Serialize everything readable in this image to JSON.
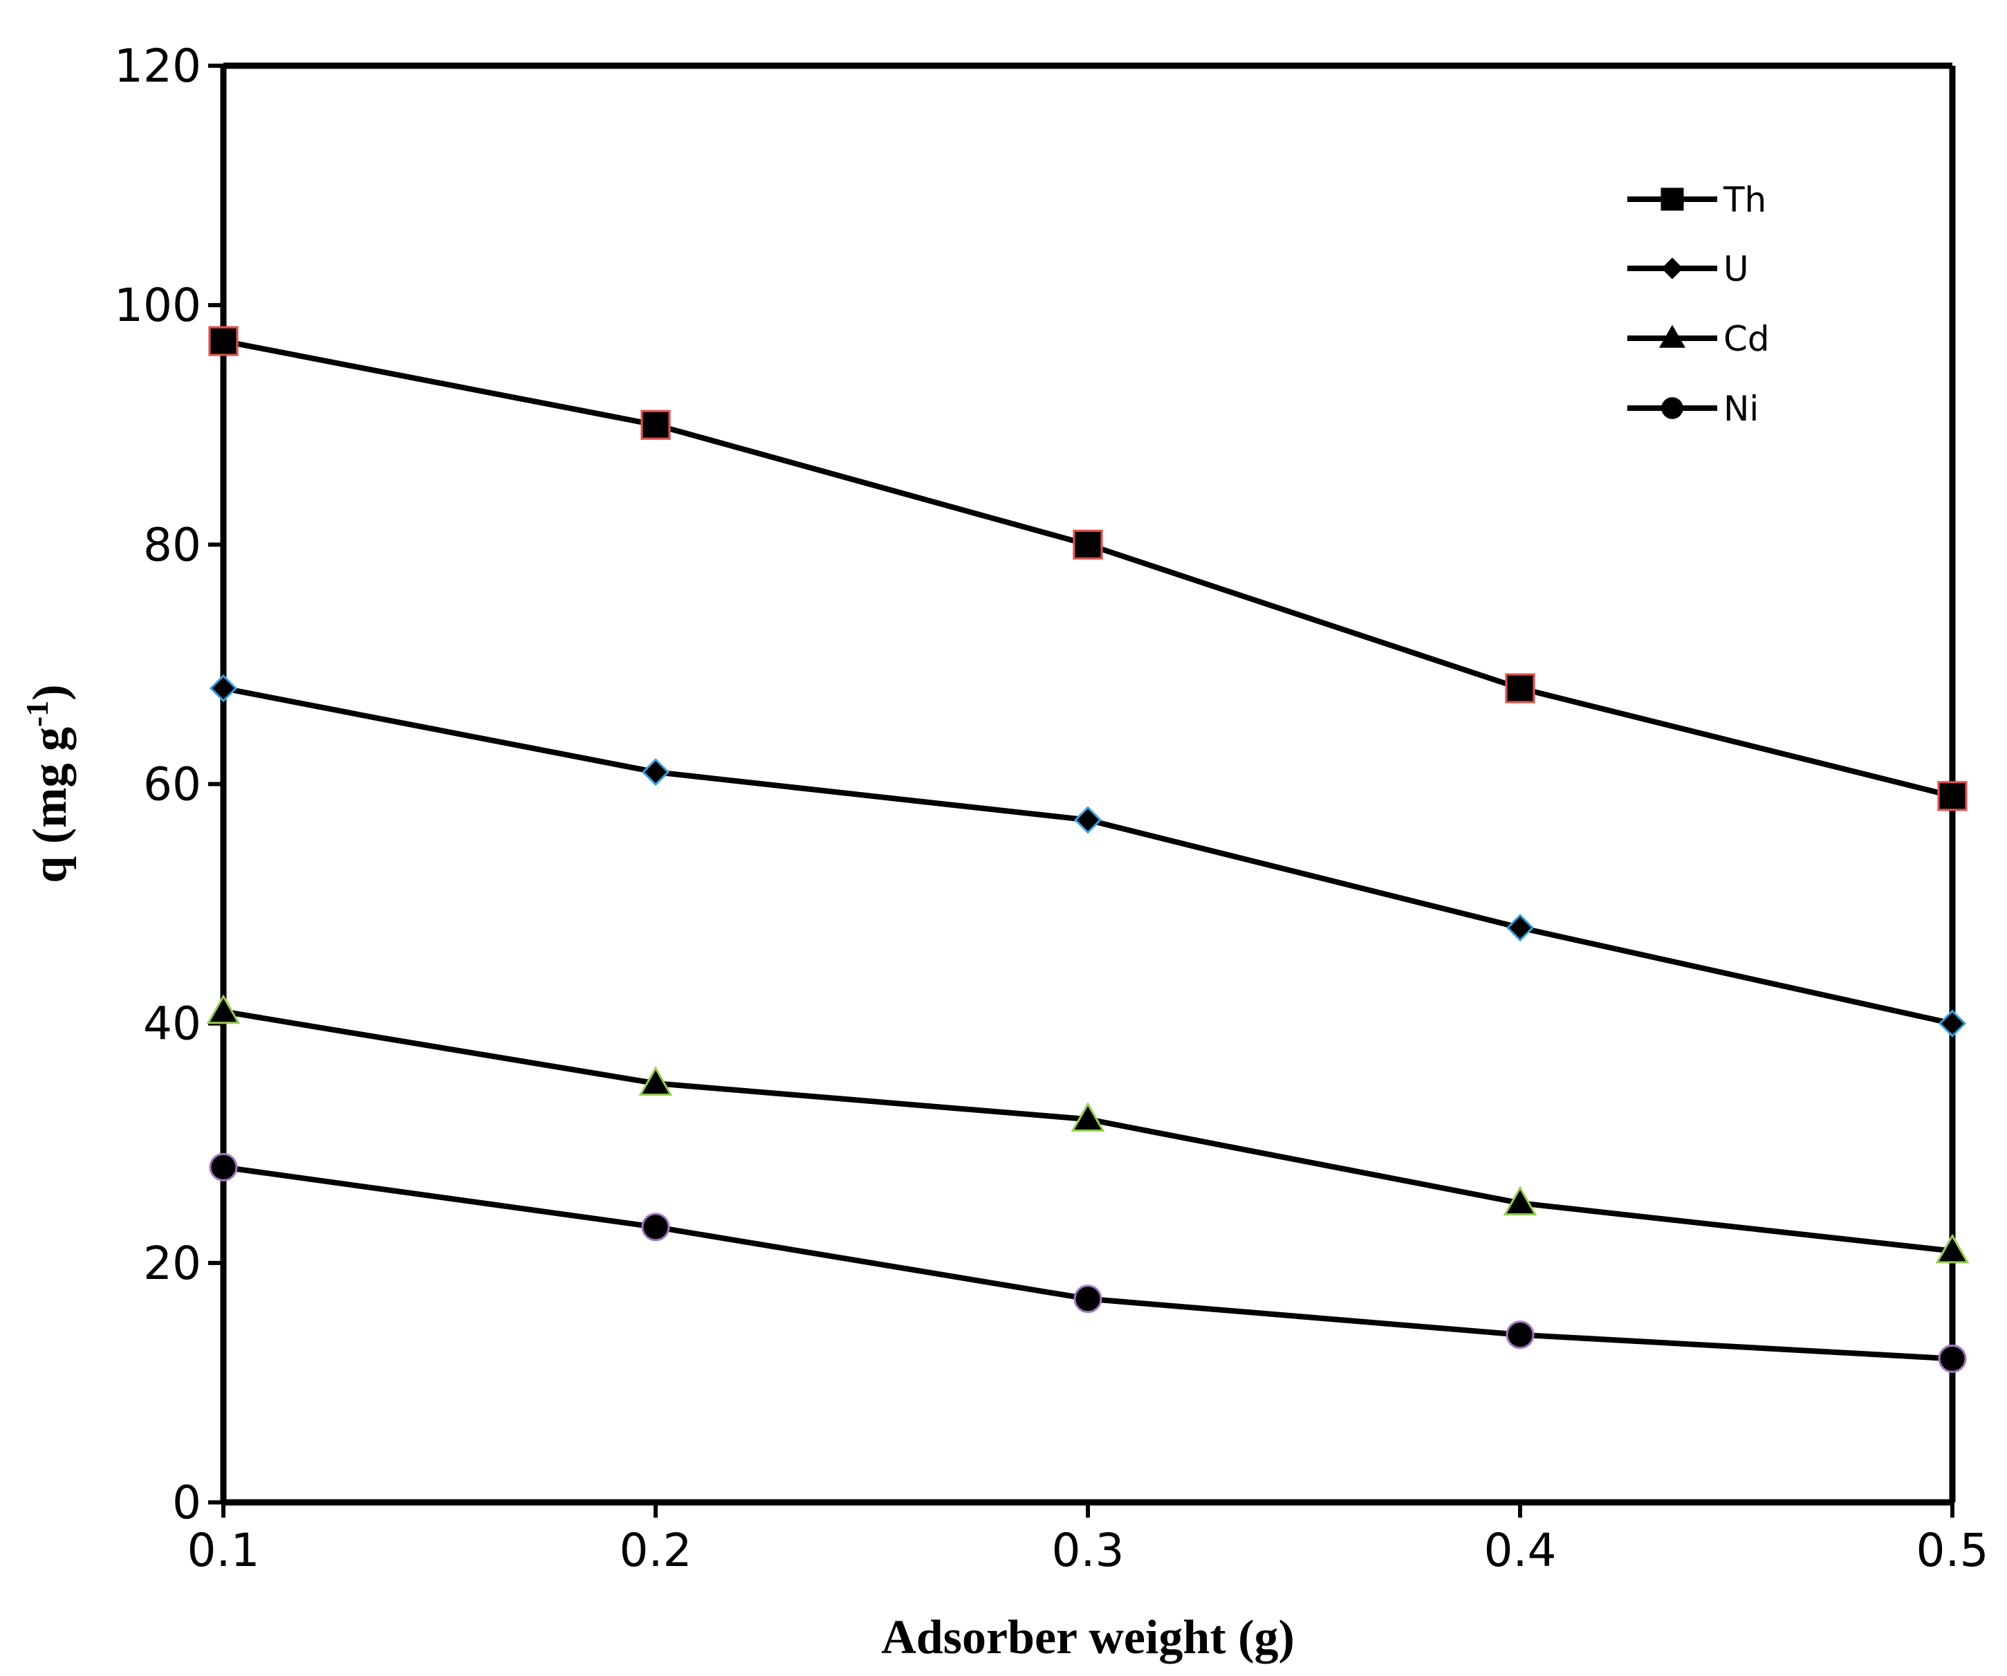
{
  "chart_data": {
    "type": "line",
    "title": "",
    "xlabel": "Adsorber weight (g)",
    "ylabel": {
      "base": "q (mg g",
      "sup": "-1",
      "close": ")"
    },
    "x": [
      0.1,
      0.2,
      0.3,
      0.4,
      0.5
    ],
    "x_tick_labels": [
      "0.1",
      "0.2",
      "0.3",
      "0.4",
      "0.5"
    ],
    "xlim": [
      0.1,
      0.5
    ],
    "ylim": [
      0,
      120
    ],
    "y_ticks": [
      0,
      20,
      40,
      60,
      80,
      100,
      120
    ],
    "y_tick_labels": [
      "0",
      "20",
      "40",
      "60",
      "80",
      "100",
      "120"
    ],
    "grid": false,
    "legend_position": "top-right",
    "series": [
      {
        "name": "Th",
        "marker": "square",
        "marker_fill": "#000000",
        "marker_edge": "#e05050",
        "values": [
          97,
          90,
          80,
          68,
          59
        ]
      },
      {
        "name": "U",
        "marker": "diamond",
        "marker_fill": "#000000",
        "marker_edge": "#3aa0e0",
        "values": [
          68,
          61,
          57,
          48,
          40
        ]
      },
      {
        "name": "Cd",
        "marker": "triangle",
        "marker_fill": "#000000",
        "marker_edge": "#99cc55",
        "values": [
          41,
          35,
          32,
          25,
          21
        ]
      },
      {
        "name": "Ni",
        "marker": "circle",
        "marker_fill": "#000000",
        "marker_edge": "#a078c0",
        "values": [
          28,
          23,
          17,
          14,
          12
        ]
      }
    ]
  }
}
